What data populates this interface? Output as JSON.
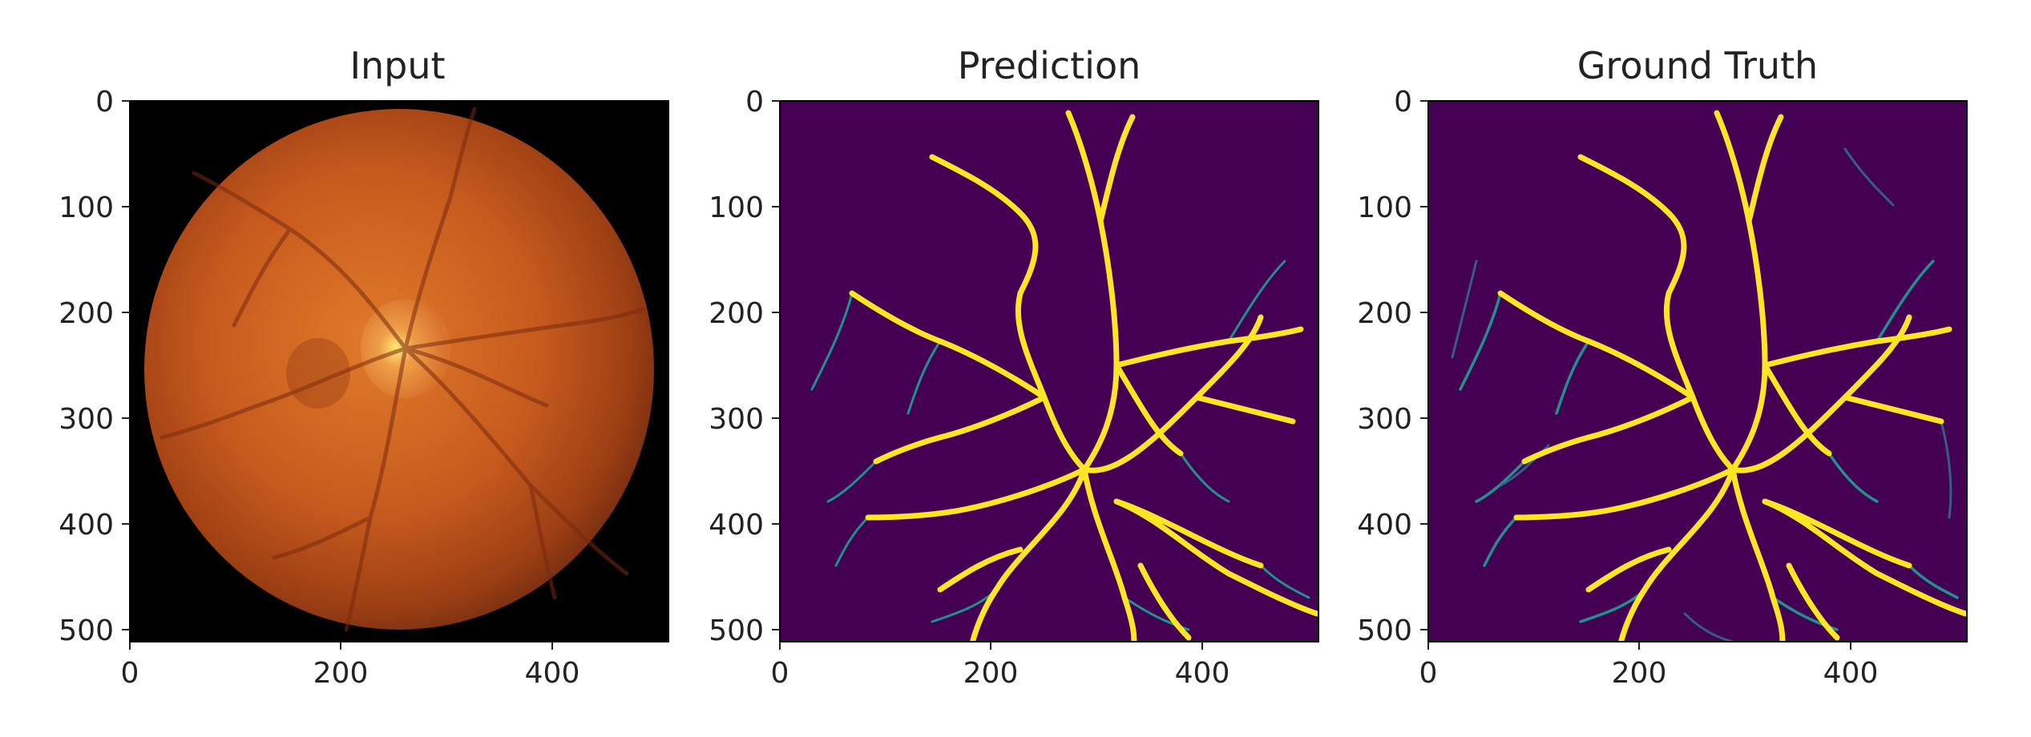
{
  "panels": [
    {
      "title": "Input",
      "kind": "fundus-photo",
      "x_ticks": [
        "0",
        "200",
        "400"
      ],
      "y_ticks": [
        "0",
        "100",
        "200",
        "300",
        "400",
        "500"
      ]
    },
    {
      "title": "Prediction",
      "kind": "vessel-segmentation",
      "x_ticks": [
        "0",
        "200",
        "400"
      ],
      "y_ticks": [
        "0",
        "100",
        "200",
        "300",
        "400",
        "500"
      ]
    },
    {
      "title": "Ground Truth",
      "kind": "vessel-segmentation",
      "x_ticks": [
        "0",
        "200",
        "400"
      ],
      "y_ticks": [
        "0",
        "100",
        "200",
        "300",
        "400",
        "500"
      ]
    }
  ],
  "colors": {
    "segmentation_background": "#440154",
    "vessel_main": "#fde725",
    "vessel_faint": "#21918c",
    "fundus_background": "#000000",
    "fundus_tissue": "#c65a1e"
  }
}
